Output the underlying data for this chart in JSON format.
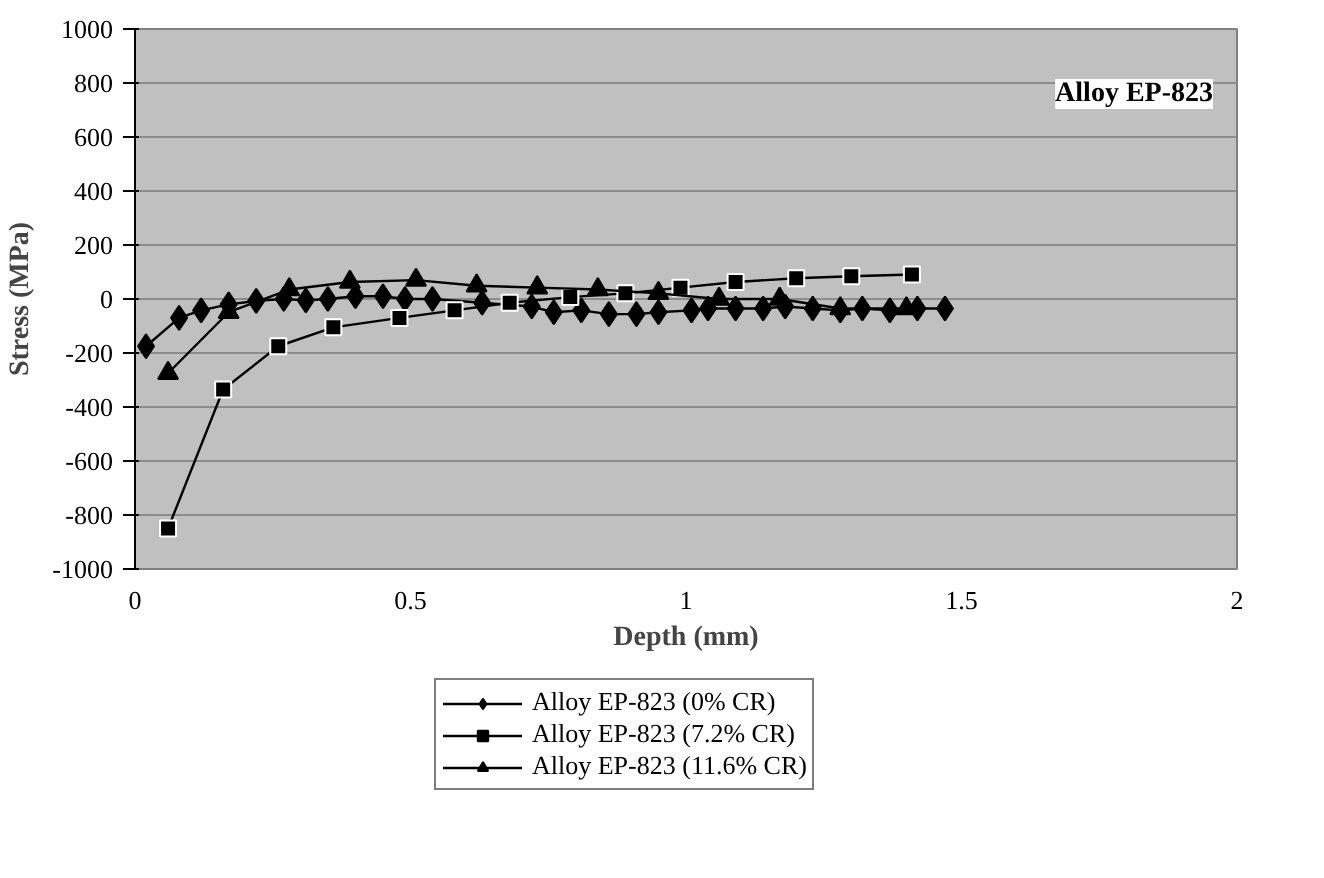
{
  "chart_data": {
    "type": "line",
    "xlabel": "Depth (mm)",
    "ylabel": "Stress (MPa)",
    "annotations": [
      "Alloy EP-823"
    ],
    "xlim": [
      0,
      2
    ],
    "xticks": [
      0,
      0.5,
      1,
      1.5,
      2
    ],
    "ylim": [
      -1000,
      1000
    ],
    "yticks": [
      -1000,
      -800,
      -600,
      -400,
      -200,
      0,
      200,
      400,
      600,
      800,
      1000
    ],
    "grid": "y",
    "legend": "bottom",
    "line_style": "solid",
    "series": [
      {
        "name": "Alloy EP-823 (0% CR)",
        "color": "#000000",
        "marker": "diamond",
        "x": [
          0.02,
          0.08,
          0.12,
          0.17,
          0.22,
          0.27,
          0.31,
          0.35,
          0.4,
          0.45,
          0.49,
          0.54,
          0.63,
          0.72,
          0.76,
          0.81,
          0.86,
          0.91,
          0.95,
          1.01,
          1.04,
          1.09,
          1.14,
          1.18,
          1.23,
          1.28,
          1.32,
          1.37,
          1.42,
          1.47
        ],
        "values": [
          -175,
          -70,
          -42,
          -20,
          -7,
          0,
          -5,
          0,
          10,
          10,
          0,
          0,
          -14,
          -28,
          -49,
          -42,
          -56,
          -56,
          -49,
          -42,
          -35,
          -35,
          -35,
          -28,
          -35,
          -42,
          -35,
          -42,
          -35,
          -35
        ]
      },
      {
        "name": "Alloy EP-823 (7.2% CR)",
        "color": "#000000",
        "marker": "square",
        "x": [
          0.06,
          0.16,
          0.26,
          0.36,
          0.48,
          0.58,
          0.68,
          0.79,
          0.89,
          0.99,
          1.09,
          1.2,
          1.3,
          1.41
        ],
        "values": [
          -850,
          -335,
          -175,
          -105,
          -70,
          -42,
          -14,
          7,
          21,
          42,
          63,
          77,
          84,
          91
        ]
      },
      {
        "name": "Alloy EP-823 (11.6% CR)",
        "color": "#000000",
        "marker": "triangle",
        "x": [
          0.06,
          0.17,
          0.28,
          0.39,
          0.51,
          0.62,
          0.73,
          0.84,
          0.95,
          1.06,
          1.17,
          1.28,
          1.4
        ],
        "values": [
          -275,
          -49,
          35,
          63,
          70,
          49,
          42,
          35,
          21,
          0,
          0,
          -35,
          -35
        ]
      }
    ]
  }
}
